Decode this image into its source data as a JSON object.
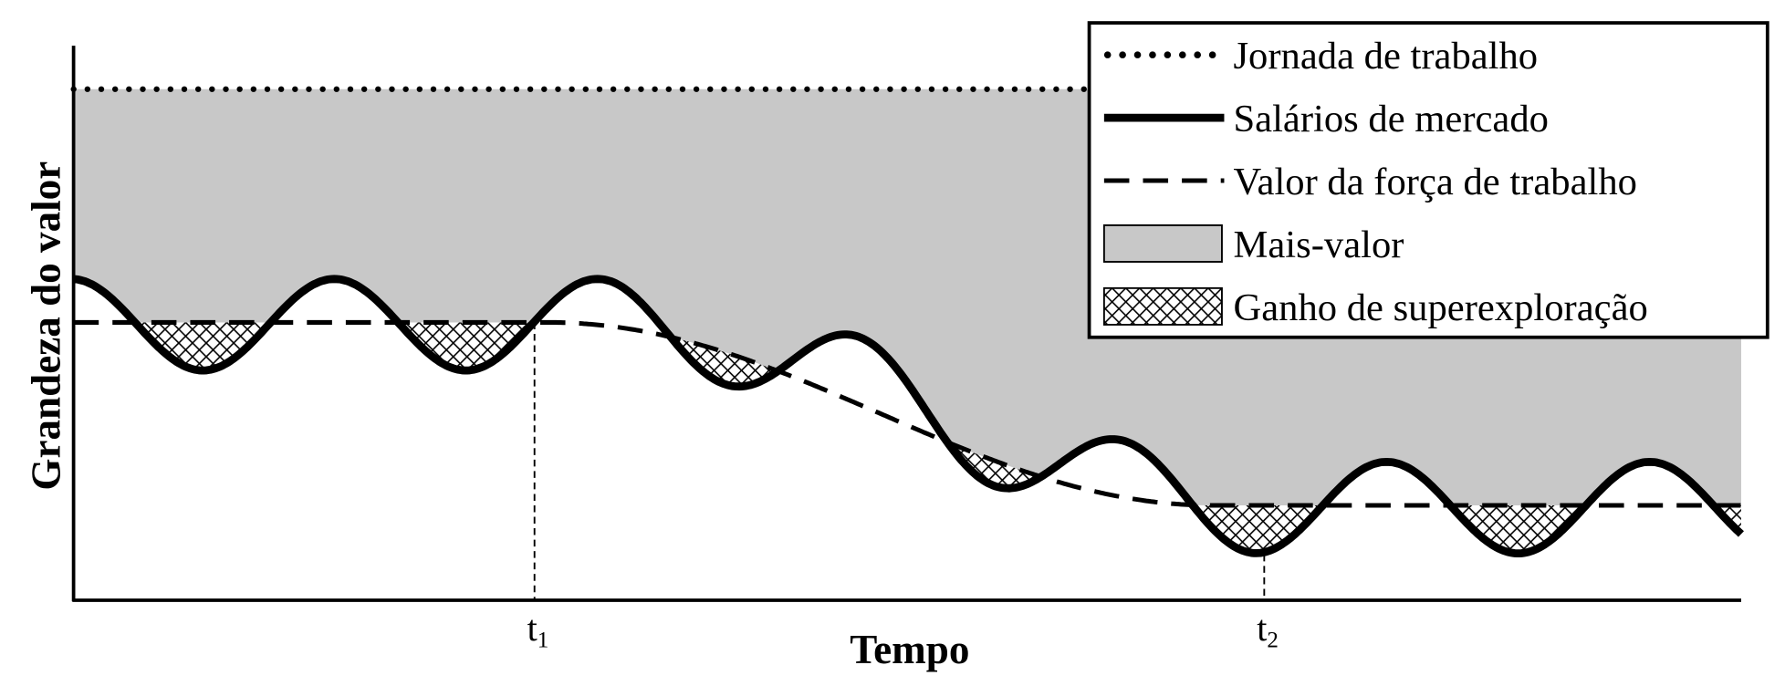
{
  "axes": {
    "y_label": "Grandeza do valor",
    "x_label": "Tempo"
  },
  "markers": [
    {
      "base": "t",
      "sub": "1"
    },
    {
      "base": "t",
      "sub": "2"
    }
  ],
  "legend": [
    "Jornada de trabalho",
    "Salários de mercado",
    "Valor da força de trabalho",
    "Mais-valor",
    "Ganho de superexploração"
  ]
}
